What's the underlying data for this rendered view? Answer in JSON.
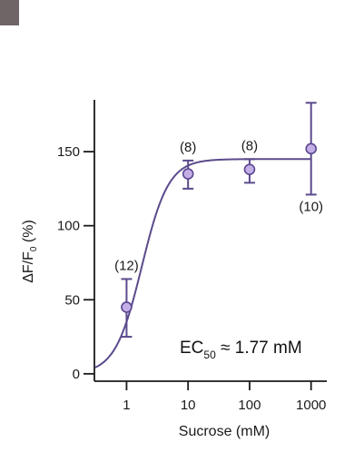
{
  "chart_data": {
    "type": "scatter",
    "title": "",
    "xlabel": "Sucrose (mM)",
    "ylabel_parts": {
      "main": "ΔF/F",
      "sub": "0",
      "tail": " (%)"
    },
    "x_scale": "log",
    "xlim": [
      0.3,
      1800
    ],
    "ylim": [
      -5,
      185
    ],
    "x_ticks": [
      1,
      10,
      100,
      1000
    ],
    "x_tick_labels": [
      "1",
      "10",
      "100",
      "1000"
    ],
    "y_ticks": [
      0,
      50,
      100,
      150
    ],
    "y_tick_labels": [
      "0",
      "50",
      "100",
      "150"
    ],
    "grid": false,
    "points": [
      {
        "x": 1,
        "y": 45,
        "err_low": 25,
        "err_high": 64,
        "n_label": "(12)",
        "label_pos": "above"
      },
      {
        "x": 10,
        "y": 135,
        "err_low": 125,
        "err_high": 144,
        "n_label": "(8)",
        "label_pos": "above"
      },
      {
        "x": 100,
        "y": 138,
        "err_low": 129,
        "err_high": 145,
        "n_label": "(8)",
        "label_pos": "above"
      },
      {
        "x": 1000,
        "y": 152,
        "err_low": 121,
        "err_high": 183,
        "n_label": "(10)",
        "label_pos": "below"
      }
    ],
    "fit": {
      "model": "hill",
      "bottom": 0,
      "top": 145,
      "ec50": 1.77,
      "hill": 2.0,
      "x_start": 0.31,
      "x_end": 1000
    },
    "annotation": {
      "main": "EC",
      "sub": "50",
      "tail": " ≈ 1.77 mM"
    },
    "colors": {
      "marker_fill": "#c4aee6",
      "marker_stroke": "#5a4690",
      "line": "#5b4a8c",
      "axis": "#1a1a1a",
      "swatch": "#6f6566"
    }
  }
}
